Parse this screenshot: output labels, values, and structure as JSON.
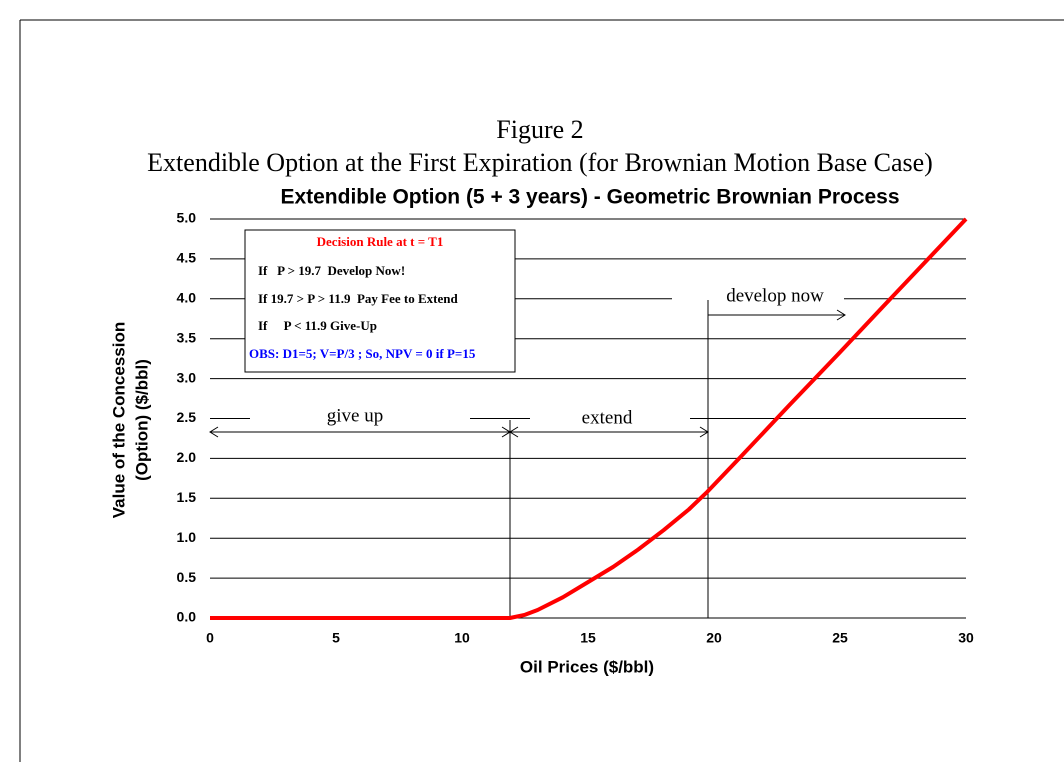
{
  "figure": {
    "label": "Figure 2",
    "caption": "Extendible Option at the First Expiration (for Brownian Motion Base Case)"
  },
  "chart_data": {
    "type": "line",
    "title": "Extendible Option (5 + 3 years) - Geometric Brownian Process",
    "x_label": "Oil Prices ($/bbl)",
    "y_label": [
      "Value of the Concession",
      "(Option) ($/bbl)"
    ],
    "x": [
      0,
      11.9,
      12.5,
      13,
      14,
      15,
      16,
      17,
      18,
      19,
      19.7,
      21,
      23,
      25,
      27,
      30
    ],
    "values": [
      0,
      0,
      0.04,
      0.1,
      0.26,
      0.45,
      0.64,
      0.86,
      1.1,
      1.36,
      1.57,
      2,
      2.67,
      3.33,
      4,
      5
    ],
    "color": "#ff0000",
    "xlim": [
      0,
      30
    ],
    "xticks": [
      0,
      5,
      10,
      15,
      20,
      25,
      30
    ],
    "ylim": [
      0,
      5
    ],
    "yticks": [
      {
        "value": 0,
        "label": "0.0"
      },
      {
        "value": 0.5,
        "label": "0.5"
      },
      {
        "value": 1,
        "label": "1.0"
      },
      {
        "value": 1.5,
        "label": "1.5"
      },
      {
        "value": 2,
        "label": "2.0"
      },
      {
        "value": 2.5,
        "label": "2.5"
      },
      {
        "value": 3,
        "label": "3.0"
      },
      {
        "value": 3.5,
        "label": "3.5"
      },
      {
        "value": 4,
        "label": "4.0"
      },
      {
        "value": 4.5,
        "label": "4.5"
      },
      {
        "value": 5,
        "label": "5.0"
      }
    ],
    "grid": true,
    "annotations": [
      "give up",
      "extend",
      "develop now"
    ],
    "decision_box": {
      "title": "Decision Rule at t = T1",
      "lines": [
        "If   P > 19.7  Develop Now!",
        "If 19.7 > P > 11.9  Pay Fee to Extend",
        "If     P < 11.9 Give-Up"
      ],
      "note": "OBS: D1=5; V=P/3 ; So, NPV = 0 if P=15"
    }
  }
}
